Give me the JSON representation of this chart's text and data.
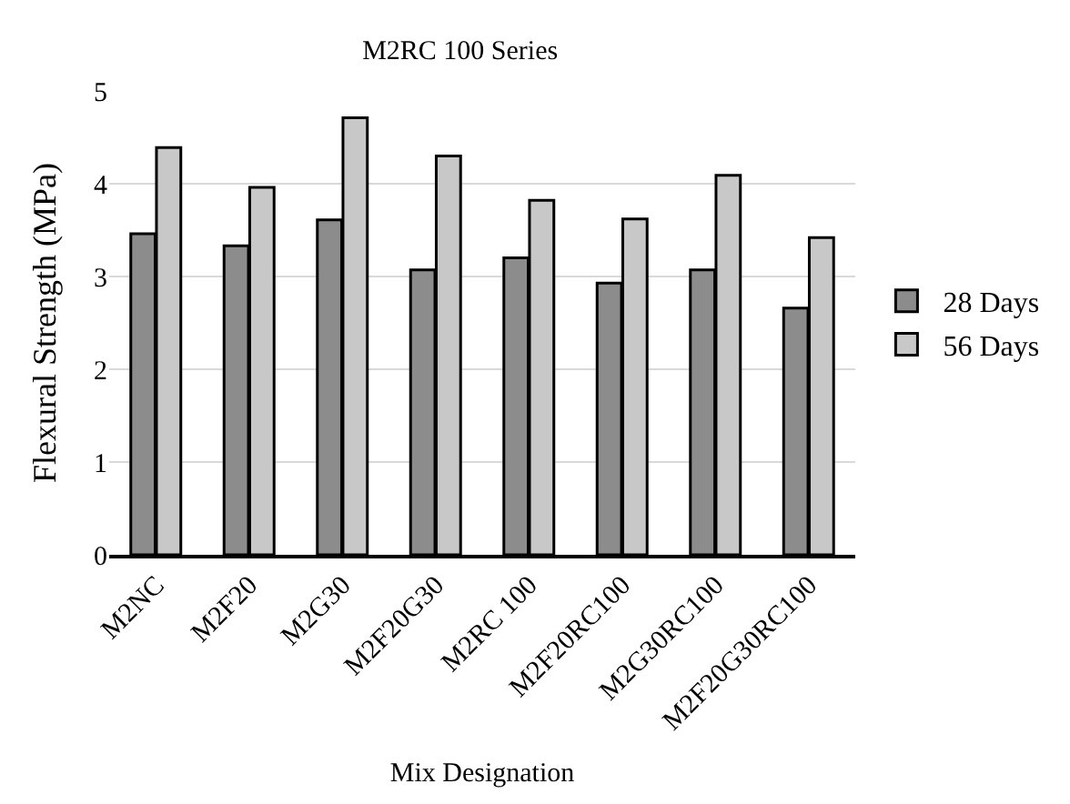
{
  "chart_data": {
    "type": "bar",
    "title": "M2RC 100 Series",
    "xlabel": "Mix Designation",
    "ylabel": "Flexural Strength (MPa)",
    "categories": [
      "M2NC",
      "M2F20",
      "M2G30",
      "M2F20G30",
      "M2RC 100",
      "M2F20RC100",
      "M2G30RC100",
      "M2F20G30RC100"
    ],
    "series": [
      {
        "name": "28 Days",
        "color": "#8c8c8c",
        "values": [
          3.46,
          3.33,
          3.61,
          3.07,
          3.2,
          2.93,
          3.07,
          2.66
        ]
      },
      {
        "name": "56 Days",
        "color": "#c8c8c8",
        "values": [
          4.39,
          3.96,
          4.71,
          4.3,
          3.82,
          3.62,
          4.09,
          3.42
        ]
      }
    ],
    "ylim": [
      0,
      5
    ],
    "yticks": [
      0,
      1,
      2,
      3,
      4,
      5
    ],
    "grid": "y",
    "legend": "right"
  }
}
